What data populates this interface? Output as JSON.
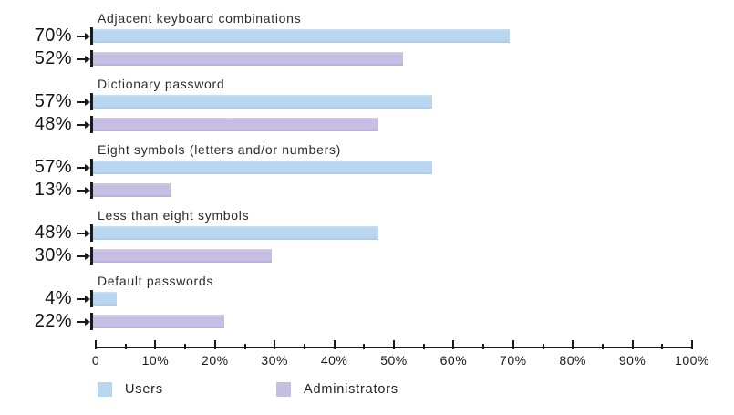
{
  "chart_data": {
    "type": "bar",
    "orientation": "horizontal",
    "title": "",
    "categories": [
      "Adjacent keyboard combinations",
      "Dictionary password",
      "Eight symbols (letters and/or numbers)",
      "Less than eight symbols",
      "Default passwords"
    ],
    "series": [
      {
        "name": "Users",
        "color": "#b8d6f0",
        "values": [
          70,
          57,
          57,
          48,
          4
        ]
      },
      {
        "name": "Administrators",
        "color": "#c6bfe3",
        "values": [
          52,
          48,
          13,
          30,
          22
        ]
      }
    ],
    "value_label_suffix": "%",
    "xlim": [
      0,
      100
    ],
    "x_ticks": [
      "0",
      "10%",
      "20%",
      "30%",
      "40%",
      "50%",
      "60%",
      "70%",
      "80%",
      "90%",
      "100%"
    ],
    "minor_tick_step": 5,
    "grid": false,
    "legend_position": "bottom",
    "colors": {
      "axis": "#1a1a1a",
      "text": "#2b2b2b",
      "value_text": "#111111"
    }
  }
}
